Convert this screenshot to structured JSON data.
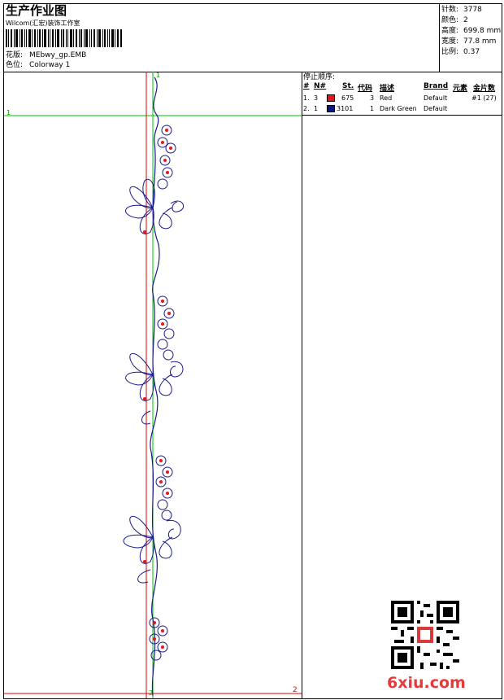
{
  "header": {
    "title": "生产作业图",
    "company": "Wilcom(汇宏)装饰工作室",
    "design_label": "花版:",
    "design_value": "MEbwy_gp.EMB",
    "colorway_label": "色位:",
    "colorway_value": "Colorway 1"
  },
  "stats": {
    "stitches_label": "针数:",
    "stitches_value": "3778",
    "colors_label": "颜色:",
    "colors_value": "2",
    "height_label": "高度:",
    "height_value": "699.8 mm",
    "width_label": "宽度:",
    "width_value": "77.8 mm",
    "scale_label": "比例:",
    "scale_value": "0.37"
  },
  "stop_sequence": {
    "title": "停止顺序:",
    "columns": [
      "#",
      "N#",
      "St.",
      "代码",
      "描述",
      "Brand",
      "元素",
      "金片数"
    ],
    "rows": [
      {
        "index": "1.",
        "n": "3",
        "color": "#e8141c",
        "st": "675",
        "code": "3",
        "desc": "Red",
        "brand": "Default",
        "elements": "",
        "sequins": "#1 (27)"
      },
      {
        "index": "2.",
        "n": "1",
        "color": "#0a1a78",
        "st": "3101",
        "code": "1",
        "desc": "Dark Green",
        "brand": "Default",
        "elements": "",
        "sequins": ""
      }
    ]
  },
  "design_area": {
    "marker_top": "1",
    "marker_left": "1",
    "marker_bottom": "2",
    "marker_right": "2"
  },
  "watermark": {
    "text": "6xiu.com"
  },
  "colors": {
    "thread_blue": "#1a1a8c",
    "thread_red": "#e8141c",
    "guide_green": "#00c000",
    "guide_red": "#e00000",
    "watermark_red": "#e83a3a"
  }
}
